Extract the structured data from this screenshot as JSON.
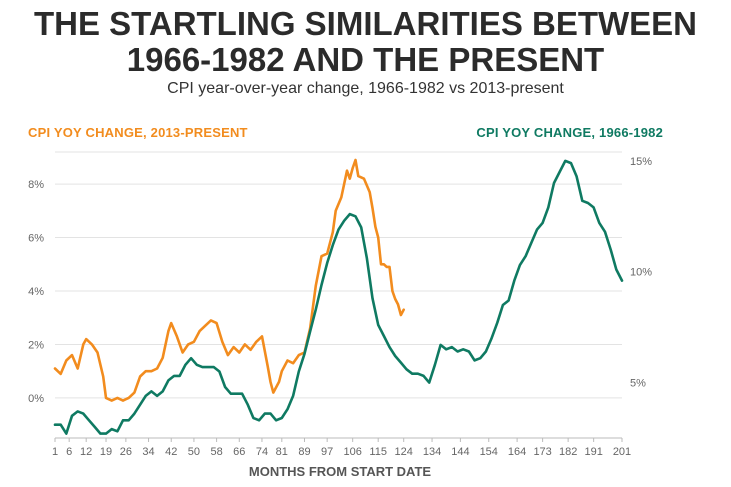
{
  "title_line1": "THE STARTLING SIMILARITIES BETWEEN",
  "title_line2": "1966-1982 AND THE PRESENT",
  "subtitle": "CPI year-over-year change, 1966-1982 vs 2013-present",
  "colors": {
    "orange": "#f28c1e",
    "green": "#0f7a62",
    "grid": "#e3e3e3",
    "text": "#2b2b2b"
  },
  "chart_data": {
    "type": "line",
    "title": "THE STARTLING SIMILARITIES BETWEEN 1966-1982 AND THE PRESENT",
    "subtitle": "CPI year-over-year change, 1966-1982 vs 2013-present",
    "xlabel": "MONTHS FROM START DATE",
    "x_ticks": [
      1,
      6,
      12,
      19,
      26,
      34,
      42,
      50,
      58,
      66,
      74,
      81,
      89,
      97,
      106,
      115,
      124,
      134,
      144,
      154,
      164,
      173,
      182,
      191,
      201
    ],
    "xlim": [
      1,
      201
    ],
    "left_axis": {
      "ticks": [
        "0%",
        "2%",
        "4%",
        "6%",
        "8%"
      ],
      "tick_values": [
        0,
        2,
        4,
        6,
        8
      ],
      "ylim": [
        -1.5,
        9.2
      ]
    },
    "right_axis": {
      "ticks": [
        "5%",
        "10%",
        "15%"
      ],
      "tick_values": [
        5,
        10,
        15
      ],
      "ylim": [
        2.5,
        15.4
      ]
    },
    "grid": true,
    "series": [
      {
        "name": "CPI YOY CHANGE, 2013-PRESENT",
        "axis": "left",
        "color": "#f28c1e",
        "points": [
          [
            1,
            1.1
          ],
          [
            3,
            0.9
          ],
          [
            5,
            1.4
          ],
          [
            7,
            1.6
          ],
          [
            9,
            1.1
          ],
          [
            11,
            2.0
          ],
          [
            12,
            2.2
          ],
          [
            14,
            2.0
          ],
          [
            16,
            1.7
          ],
          [
            18,
            0.8
          ],
          [
            19,
            0.0
          ],
          [
            21,
            -0.1
          ],
          [
            23,
            0.0
          ],
          [
            25,
            -0.1
          ],
          [
            27,
            0.0
          ],
          [
            29,
            0.2
          ],
          [
            31,
            0.8
          ],
          [
            33,
            1.0
          ],
          [
            35,
            1.0
          ],
          [
            37,
            1.1
          ],
          [
            39,
            1.5
          ],
          [
            41,
            2.5
          ],
          [
            42,
            2.8
          ],
          [
            44,
            2.3
          ],
          [
            46,
            1.7
          ],
          [
            48,
            2.0
          ],
          [
            50,
            2.1
          ],
          [
            52,
            2.5
          ],
          [
            54,
            2.7
          ],
          [
            56,
            2.9
          ],
          [
            58,
            2.8
          ],
          [
            60,
            2.1
          ],
          [
            62,
            1.6
          ],
          [
            64,
            1.9
          ],
          [
            66,
            1.7
          ],
          [
            68,
            2.0
          ],
          [
            70,
            1.8
          ],
          [
            72,
            2.1
          ],
          [
            74,
            2.3
          ],
          [
            76,
            1.2
          ],
          [
            77,
            0.6
          ],
          [
            78,
            0.2
          ],
          [
            80,
            0.6
          ],
          [
            81,
            1.0
          ],
          [
            83,
            1.4
          ],
          [
            85,
            1.3
          ],
          [
            87,
            1.6
          ],
          [
            89,
            1.7
          ],
          [
            91,
            2.6
          ],
          [
            93,
            4.2
          ],
          [
            95,
            5.3
          ],
          [
            97,
            5.4
          ],
          [
            99,
            6.2
          ],
          [
            100,
            7.0
          ],
          [
            102,
            7.5
          ],
          [
            104,
            8.5
          ],
          [
            105,
            8.2
          ],
          [
            106,
            8.6
          ],
          [
            107,
            8.9
          ],
          [
            108,
            8.3
          ],
          [
            110,
            8.2
          ],
          [
            112,
            7.7
          ],
          [
            113,
            7.1
          ],
          [
            114,
            6.4
          ],
          [
            115,
            6.0
          ],
          [
            116,
            5.0
          ],
          [
            117,
            5.0
          ],
          [
            118,
            4.9
          ],
          [
            119,
            4.9
          ],
          [
            120,
            4.0
          ],
          [
            121,
            3.7
          ],
          [
            122,
            3.5
          ],
          [
            123,
            3.1
          ],
          [
            124,
            3.3
          ]
        ]
      },
      {
        "name": "CPI YOY CHANGE, 1966-1982",
        "axis": "right",
        "color": "#0f7a62",
        "points": [
          [
            1,
            3.1
          ],
          [
            3,
            3.1
          ],
          [
            5,
            2.7
          ],
          [
            7,
            3.5
          ],
          [
            9,
            3.7
          ],
          [
            11,
            3.6
          ],
          [
            13,
            3.3
          ],
          [
            15,
            3.0
          ],
          [
            17,
            2.7
          ],
          [
            19,
            2.7
          ],
          [
            21,
            2.9
          ],
          [
            23,
            2.8
          ],
          [
            25,
            3.3
          ],
          [
            27,
            3.3
          ],
          [
            29,
            3.6
          ],
          [
            31,
            4.0
          ],
          [
            33,
            4.4
          ],
          [
            35,
            4.6
          ],
          [
            37,
            4.4
          ],
          [
            39,
            4.6
          ],
          [
            41,
            5.1
          ],
          [
            43,
            5.3
          ],
          [
            45,
            5.3
          ],
          [
            47,
            5.8
          ],
          [
            49,
            6.1
          ],
          [
            51,
            5.8
          ],
          [
            53,
            5.7
          ],
          [
            55,
            5.7
          ],
          [
            57,
            5.7
          ],
          [
            59,
            5.5
          ],
          [
            61,
            4.8
          ],
          [
            63,
            4.5
          ],
          [
            65,
            4.5
          ],
          [
            67,
            4.5
          ],
          [
            69,
            4.0
          ],
          [
            71,
            3.4
          ],
          [
            73,
            3.3
          ],
          [
            75,
            3.6
          ],
          [
            77,
            3.6
          ],
          [
            79,
            3.3
          ],
          [
            81,
            3.4
          ],
          [
            83,
            3.8
          ],
          [
            85,
            4.4
          ],
          [
            87,
            5.5
          ],
          [
            89,
            6.3
          ],
          [
            91,
            7.3
          ],
          [
            93,
            8.3
          ],
          [
            95,
            9.4
          ],
          [
            97,
            10.4
          ],
          [
            99,
            11.2
          ],
          [
            101,
            11.9
          ],
          [
            103,
            12.3
          ],
          [
            105,
            12.6
          ],
          [
            107,
            12.5
          ],
          [
            109,
            12.0
          ],
          [
            111,
            10.6
          ],
          [
            113,
            8.8
          ],
          [
            115,
            7.6
          ],
          [
            117,
            7.1
          ],
          [
            119,
            6.6
          ],
          [
            121,
            6.2
          ],
          [
            123,
            5.9
          ],
          [
            125,
            5.6
          ],
          [
            127,
            5.4
          ],
          [
            129,
            5.4
          ],
          [
            131,
            5.3
          ],
          [
            133,
            5.0
          ],
          [
            135,
            5.8
          ],
          [
            137,
            6.7
          ],
          [
            139,
            6.5
          ],
          [
            141,
            6.6
          ],
          [
            143,
            6.4
          ],
          [
            145,
            6.5
          ],
          [
            147,
            6.4
          ],
          [
            149,
            6.0
          ],
          [
            151,
            6.1
          ],
          [
            153,
            6.4
          ],
          [
            155,
            7.0
          ],
          [
            157,
            7.7
          ],
          [
            159,
            8.5
          ],
          [
            161,
            8.7
          ],
          [
            163,
            9.6
          ],
          [
            165,
            10.3
          ],
          [
            167,
            10.7
          ],
          [
            169,
            11.3
          ],
          [
            171,
            11.9
          ],
          [
            173,
            12.2
          ],
          [
            175,
            12.9
          ],
          [
            177,
            14.0
          ],
          [
            179,
            14.5
          ],
          [
            181,
            15.0
          ],
          [
            183,
            14.9
          ],
          [
            185,
            14.3
          ],
          [
            187,
            13.2
          ],
          [
            189,
            13.1
          ],
          [
            191,
            12.9
          ],
          [
            193,
            12.2
          ],
          [
            195,
            11.8
          ],
          [
            197,
            11.0
          ],
          [
            199,
            10.1
          ],
          [
            201,
            9.6
          ]
        ]
      }
    ]
  }
}
